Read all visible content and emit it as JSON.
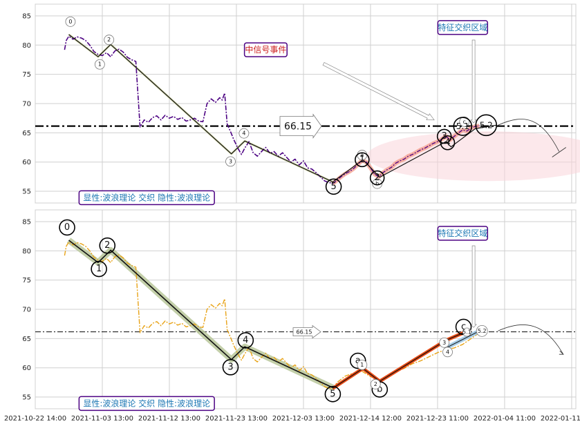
{
  "chart_data": [
    {
      "type": "line",
      "panel": "top",
      "x_tick_labels": [
        "2021-10-22 14:00",
        "2021-11-03 13:00",
        "2021-11-12 13:00",
        "2021-11-23 13:00",
        "2021-12-03 13:00",
        "2021-12-14 12:00",
        "2021-12-23 11:00",
        "2022-01-04 11:00",
        "2022-01-11 14:00"
      ],
      "x_tick_index": [
        0,
        8,
        16,
        24,
        32,
        40,
        48,
        56,
        64
      ],
      "y_ticks": [
        55,
        60,
        65,
        70,
        75,
        80,
        85
      ],
      "ylim": [
        53,
        87
      ],
      "xlim": [
        0,
        64.5
      ],
      "grid": true,
      "price_color": "#4b0082",
      "price_style": "dashdot",
      "price": [
        [
          3.5,
          79.2
        ],
        [
          3.7,
          80.8
        ],
        [
          4.0,
          81.5
        ],
        [
          4.5,
          81.0
        ],
        [
          5.0,
          81.4
        ],
        [
          5.5,
          81.2
        ],
        [
          6.0,
          80.8
        ],
        [
          6.5,
          80.0
        ],
        [
          7.0,
          78.9
        ],
        [
          7.5,
          78.4
        ],
        [
          8.0,
          78.2
        ],
        [
          8.5,
          78.7
        ],
        [
          9.0,
          78.0
        ],
        [
          9.5,
          79.0
        ],
        [
          10.0,
          79.3
        ],
        [
          10.5,
          78.8
        ],
        [
          11.0,
          77.9
        ],
        [
          11.5,
          77.5
        ],
        [
          12.0,
          77.2
        ],
        [
          12.5,
          66.0
        ],
        [
          13.0,
          67.2
        ],
        [
          13.5,
          66.8
        ],
        [
          14.0,
          67.6
        ],
        [
          14.5,
          67.9
        ],
        [
          15.0,
          67.2
        ],
        [
          15.5,
          68.0
        ],
        [
          16.0,
          67.5
        ],
        [
          16.5,
          67.8
        ],
        [
          17.0,
          67.3
        ],
        [
          17.5,
          67.6
        ],
        [
          18.0,
          67.0
        ],
        [
          18.5,
          67.2
        ],
        [
          19.0,
          67.5
        ],
        [
          19.5,
          67.0
        ],
        [
          20.0,
          66.9
        ],
        [
          20.5,
          70.0
        ],
        [
          21.0,
          70.8
        ],
        [
          21.5,
          70.2
        ],
        [
          22.0,
          71.0
        ],
        [
          22.3,
          70.6
        ],
        [
          22.6,
          71.8
        ],
        [
          22.9,
          66.5
        ],
        [
          23.3,
          65.2
        ],
        [
          23.7,
          63.8
        ],
        [
          24.2,
          62.3
        ],
        [
          24.6,
          61.3
        ],
        [
          25.0,
          62.4
        ],
        [
          25.5,
          63.5
        ],
        [
          26.0,
          61.6
        ],
        [
          26.5,
          61.0
        ],
        [
          27.0,
          61.8
        ],
        [
          27.5,
          62.5
        ],
        [
          28.0,
          61.5
        ],
        [
          28.5,
          61.8
        ],
        [
          29.0,
          61.0
        ],
        [
          29.5,
          61.6
        ],
        [
          30.0,
          60.8
        ],
        [
          30.5,
          60.0
        ],
        [
          31.0,
          60.5
        ],
        [
          31.5,
          59.5
        ],
        [
          32.0,
          60.2
        ],
        [
          32.5,
          59.0
        ],
        [
          33.0,
          58.8
        ],
        [
          33.5,
          58.2
        ],
        [
          34.0,
          57.5
        ],
        [
          34.5,
          56.8
        ],
        [
          35.0,
          56.5
        ],
        [
          35.5,
          56.4
        ]
      ],
      "signal": [
        [
          35.5,
          56.3
        ],
        [
          36.0,
          56.9
        ],
        [
          36.5,
          57.5
        ],
        [
          37.0,
          58.0
        ],
        [
          37.5,
          58.4
        ],
        [
          38.0,
          58.9
        ],
        [
          38.5,
          59.6
        ],
        [
          39.0,
          60.3
        ],
        [
          39.5,
          60.0
        ],
        [
          40.0,
          59.0
        ],
        [
          40.5,
          57.9
        ],
        [
          41.0,
          57.5
        ],
        [
          41.5,
          58.2
        ],
        [
          42.0,
          58.7
        ],
        [
          42.5,
          59.1
        ],
        [
          43.0,
          59.8
        ],
        [
          43.5,
          60.2
        ],
        [
          44.0,
          60.5
        ],
        [
          44.5,
          61.0
        ],
        [
          45.0,
          61.3
        ],
        [
          45.5,
          61.7
        ],
        [
          46.0,
          62.1
        ],
        [
          46.5,
          62.4
        ],
        [
          47.0,
          62.8
        ],
        [
          47.5,
          63.2
        ],
        [
          48.0,
          63.5
        ],
        [
          48.5,
          63.9
        ],
        [
          49.0,
          64.4
        ],
        [
          49.5,
          63.8
        ],
        [
          50.0,
          64.4
        ],
        [
          50.5,
          65.0
        ],
        [
          51.0,
          65.5
        ],
        [
          51.5,
          65.3
        ],
        [
          52.0,
          65.8
        ],
        [
          52.5,
          66.1
        ],
        [
          53.0,
          66.2
        ]
      ],
      "wave_line": [
        [
          4.0,
          81.8
        ],
        [
          7.5,
          78.0
        ],
        [
          9.0,
          80.1
        ],
        [
          23.4,
          61.4
        ],
        [
          25.0,
          63.6
        ],
        [
          35.5,
          56.6
        ]
      ],
      "signal_waves": [
        [
          35.5,
          56.6
        ],
        [
          39.1,
          60.4
        ],
        [
          41.1,
          57.4
        ],
        [
          49.0,
          63.5
        ],
        [
          49.6,
          62.6
        ],
        [
          52.5,
          65.7
        ],
        [
          55.0,
          66.3
        ]
      ],
      "hline": 66.15,
      "hline_label": "66.15",
      "wave_labels": [
        {
          "t": "0",
          "x": 4.2,
          "y": 84.0,
          "r": 7
        },
        {
          "t": "2",
          "x": 8.8,
          "y": 80.9,
          "r": 7
        },
        {
          "t": "1",
          "x": 7.7,
          "y": 76.7,
          "r": 7
        },
        {
          "t": "3",
          "x": 23.3,
          "y": 60.1,
          "r": 7
        },
        {
          "t": "4",
          "x": 24.9,
          "y": 64.9,
          "r": 7
        },
        {
          "t": "5",
          "x": 35.6,
          "y": 55.8,
          "r": 11
        },
        {
          "t": "a",
          "x": 39.0,
          "y": 61.2,
          "r": 7
        },
        {
          "t": "1",
          "x": 39.0,
          "y": 60.4,
          "r": 10
        },
        {
          "t": "b",
          "x": 40.8,
          "y": 56.3,
          "r": 7
        },
        {
          "t": "2",
          "x": 40.8,
          "y": 57.3,
          "r": 10
        },
        {
          "t": "3",
          "x": 48.8,
          "y": 64.4,
          "r": 10
        },
        {
          "t": "4",
          "x": 49.2,
          "y": 63.3,
          "r": 10
        },
        {
          "t": "c",
          "x": 51.2,
          "y": 66.9,
          "r": 7
        },
        {
          "t": "5.1",
          "x": 51.0,
          "y": 66.1,
          "r": 13
        },
        {
          "t": "5.2",
          "x": 53.8,
          "y": 66.3,
          "r": 15
        }
      ],
      "annotations": [
        {
          "text": "特征交织区域",
          "kind": "box",
          "x": 51.0,
          "y": 83.0
        },
        {
          "text": "中信号事件",
          "kind": "red",
          "x": 27.5,
          "y": 79.2
        },
        {
          "text": "显性:波浪理论 交织 隐性:波浪理论",
          "kind": "box",
          "x": 13.3,
          "y": 53.9
        }
      ]
    },
    {
      "type": "line",
      "panel": "bottom",
      "x_tick_labels": [
        "2021-10-22 14:00",
        "2021-11-03 13:00",
        "2021-11-12 13:00",
        "2021-11-23 13:00",
        "2021-12-03 13:00",
        "2021-12-14 12:00",
        "2021-12-23 11:00",
        "2022-01-04 11:00",
        "2022-01-11 14:00"
      ],
      "x_tick_index": [
        0,
        8,
        16,
        24,
        32,
        40,
        48,
        56,
        64
      ],
      "y_ticks": [
        55,
        60,
        65,
        70,
        75,
        80,
        85
      ],
      "ylim": [
        53,
        87
      ],
      "xlim": [
        0,
        64.5
      ],
      "grid": true,
      "price_color": "#e8a317",
      "price_style": "dashdot",
      "price": [
        [
          3.5,
          79.2
        ],
        [
          3.7,
          80.8
        ],
        [
          4.0,
          81.5
        ],
        [
          4.5,
          81.0
        ],
        [
          5.0,
          81.4
        ],
        [
          5.5,
          81.2
        ],
        [
          6.0,
          80.8
        ],
        [
          6.5,
          80.0
        ],
        [
          7.0,
          78.9
        ],
        [
          7.5,
          78.4
        ],
        [
          8.0,
          78.2
        ],
        [
          8.5,
          78.7
        ],
        [
          9.0,
          78.0
        ],
        [
          9.5,
          79.0
        ],
        [
          10.0,
          79.3
        ],
        [
          10.5,
          78.8
        ],
        [
          11.0,
          77.9
        ],
        [
          11.5,
          77.5
        ],
        [
          12.0,
          77.2
        ],
        [
          12.5,
          66.0
        ],
        [
          13.0,
          67.2
        ],
        [
          13.5,
          66.8
        ],
        [
          14.0,
          67.6
        ],
        [
          14.5,
          67.9
        ],
        [
          15.0,
          67.2
        ],
        [
          15.5,
          68.0
        ],
        [
          16.0,
          67.5
        ],
        [
          16.5,
          67.8
        ],
        [
          17.0,
          67.3
        ],
        [
          17.5,
          67.6
        ],
        [
          18.0,
          67.0
        ],
        [
          18.5,
          67.2
        ],
        [
          19.0,
          67.5
        ],
        [
          19.5,
          67.0
        ],
        [
          20.0,
          66.9
        ],
        [
          20.5,
          70.0
        ],
        [
          21.0,
          70.8
        ],
        [
          21.5,
          70.2
        ],
        [
          22.0,
          71.0
        ],
        [
          22.3,
          70.6
        ],
        [
          22.6,
          71.8
        ],
        [
          22.9,
          66.5
        ],
        [
          23.3,
          65.2
        ],
        [
          23.7,
          63.8
        ],
        [
          24.2,
          62.3
        ],
        [
          24.6,
          61.3
        ],
        [
          25.0,
          62.4
        ],
        [
          25.5,
          63.5
        ],
        [
          26.0,
          61.6
        ],
        [
          26.5,
          61.0
        ],
        [
          27.0,
          61.8
        ],
        [
          27.5,
          62.5
        ],
        [
          28.0,
          61.5
        ],
        [
          28.5,
          61.8
        ],
        [
          29.0,
          61.0
        ],
        [
          29.5,
          61.6
        ],
        [
          30.0,
          60.8
        ],
        [
          30.5,
          60.0
        ],
        [
          31.0,
          60.5
        ],
        [
          31.5,
          59.5
        ],
        [
          32.0,
          60.2
        ],
        [
          32.5,
          59.0
        ],
        [
          33.0,
          58.8
        ],
        [
          33.5,
          58.2
        ],
        [
          34.0,
          57.5
        ],
        [
          34.5,
          56.8
        ],
        [
          35.0,
          56.5
        ],
        [
          35.5,
          56.4
        ],
        [
          36.0,
          57.5
        ],
        [
          37.0,
          58.6
        ],
        [
          38.0,
          59.1
        ],
        [
          39.0,
          59.4
        ],
        [
          40.0,
          58.5
        ],
        [
          41.0,
          57.9
        ],
        [
          42.0,
          58.6
        ],
        [
          43.0,
          59.3
        ],
        [
          44.0,
          59.9
        ],
        [
          45.0,
          60.7
        ],
        [
          46.0,
          61.2
        ],
        [
          47.0,
          61.9
        ],
        [
          48.0,
          62.6
        ],
        [
          49.0,
          63.1
        ],
        [
          50.0,
          63.4
        ],
        [
          51.0,
          64.0
        ],
        [
          52.0,
          65.0
        ],
        [
          53.0,
          66.0
        ]
      ],
      "wave_line": [
        [
          4.0,
          81.8
        ],
        [
          7.5,
          78.0
        ],
        [
          9.0,
          80.1
        ],
        [
          23.4,
          61.4
        ],
        [
          25.0,
          63.6
        ],
        [
          35.5,
          56.6
        ]
      ],
      "signal_waves": [
        [
          35.5,
          56.5
        ],
        [
          39.1,
          59.9
        ],
        [
          41.1,
          57.7
        ],
        [
          49.0,
          64.7
        ],
        [
          51.1,
          66.0
        ]
      ],
      "small_waves": [
        [
          49.0,
          63.4
        ],
        [
          53.0,
          66.3
        ]
      ],
      "hline": 66.15,
      "hline_label": "66.15",
      "wave_labels": [
        {
          "t": "0",
          "x": 3.8,
          "y": 84.0,
          "r": 11
        },
        {
          "t": "2",
          "x": 8.6,
          "y": 80.9,
          "r": 11
        },
        {
          "t": "1",
          "x": 7.6,
          "y": 76.9,
          "r": 11
        },
        {
          "t": "3",
          "x": 23.3,
          "y": 60.1,
          "r": 11
        },
        {
          "t": "4",
          "x": 25.1,
          "y": 64.7,
          "r": 11
        },
        {
          "t": "5",
          "x": 35.5,
          "y": 55.5,
          "r": 11
        },
        {
          "t": "a",
          "x": 38.5,
          "y": 61.2,
          "r": 11
        },
        {
          "t": "1",
          "x": 39.0,
          "y": 60.5,
          "r": 7
        },
        {
          "t": "b",
          "x": 41.1,
          "y": 56.3,
          "r": 11
        },
        {
          "t": "2",
          "x": 40.6,
          "y": 57.2,
          "r": 7
        },
        {
          "t": "3",
          "x": 48.8,
          "y": 64.3,
          "r": 7
        },
        {
          "t": "4",
          "x": 49.2,
          "y": 62.7,
          "r": 7
        },
        {
          "t": "c",
          "x": 51.1,
          "y": 67.0,
          "r": 11
        },
        {
          "t": "5.1",
          "x": 51.5,
          "y": 66.1,
          "r": 6
        },
        {
          "t": "5.2",
          "x": 53.3,
          "y": 66.3,
          "r": 8
        }
      ],
      "annotations": [
        {
          "text": "特征交织区域",
          "kind": "box",
          "x": 51.0,
          "y": 83.0
        },
        {
          "text": "显性:波浪理论 交织 隐性:波浪理论",
          "kind": "box",
          "x": 13.3,
          "y": 53.9
        }
      ]
    }
  ]
}
